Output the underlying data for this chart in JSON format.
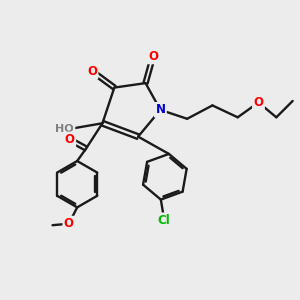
{
  "bg_color": "#ececec",
  "bond_color": "#1a1a1a",
  "atom_colors": {
    "O": "#ff0000",
    "N": "#0000cc",
    "Cl": "#00bb00",
    "H": "#808080",
    "C": "#1a1a1a"
  },
  "figsize": [
    3.0,
    3.0
  ],
  "dpi": 100
}
